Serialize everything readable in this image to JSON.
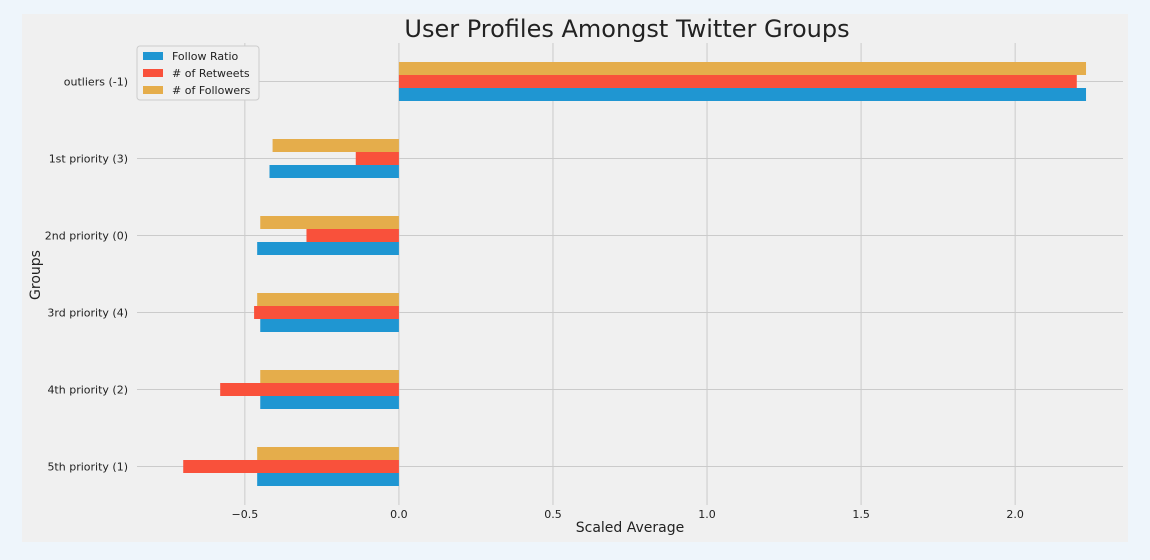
{
  "colors": {
    "page_background": "#eef5fb",
    "figure_background": "#f0f0f0",
    "grid": "#cbcbcb",
    "text": "#222222"
  },
  "chart_data": {
    "type": "bar",
    "orientation": "horizontal",
    "title": "User Profiles Amongst Twitter Groups",
    "xlabel": "Scaled Average",
    "ylabel": "Groups",
    "categories": [
      "outliers (-1)",
      "1st priority (3)",
      "2nd priority (0)",
      "3rd priority (4)",
      "4th priority (2)",
      "5th priority (1)"
    ],
    "series": [
      {
        "name": "Follow Ratio",
        "color": "#1f96d2",
        "values": [
          2.23,
          -0.42,
          -0.46,
          -0.45,
          -0.45,
          -0.46
        ]
      },
      {
        "name": "# of Retweets",
        "color": "#f9513b",
        "values": [
          2.2,
          -0.14,
          -0.3,
          -0.47,
          -0.58,
          -0.7
        ]
      },
      {
        "name": "# of Followers",
        "color": "#e5ad4b",
        "values": [
          2.23,
          -0.41,
          -0.45,
          -0.46,
          -0.45,
          -0.46
        ]
      }
    ],
    "xlim": [
      -0.85,
      2.35
    ],
    "xticks": [
      -0.5,
      0.0,
      0.5,
      1.0,
      1.5,
      2.0
    ],
    "xtick_labels": [
      "−0.5",
      "0.0",
      "0.5",
      "1.0",
      "1.5",
      "2.0"
    ],
    "grid": true,
    "legend_position": "top-left"
  }
}
